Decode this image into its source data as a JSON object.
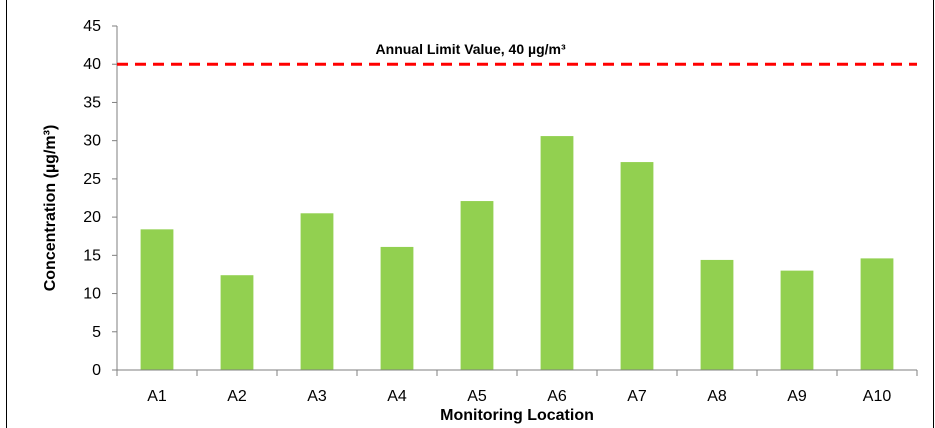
{
  "chart_data": {
    "type": "bar",
    "categories": [
      "A1",
      "A2",
      "A3",
      "A4",
      "A5",
      "A6",
      "A7",
      "A8",
      "A9",
      "A10"
    ],
    "values": [
      18.4,
      12.4,
      20.5,
      16.1,
      22.1,
      30.6,
      27.2,
      14.4,
      13.0,
      14.6
    ],
    "xlabel": "Monitoring Location",
    "ylabel": "Concentration (µg/m³)",
    "ylim": [
      0,
      45
    ],
    "yticks": [
      0,
      5,
      10,
      15,
      20,
      25,
      30,
      35,
      40,
      45
    ],
    "bar_color": "#92d050",
    "grid": false,
    "reference_line": {
      "value": 40,
      "label": "Annual Limit Value, 40 µg/m³",
      "color": "#ff0000",
      "style": "dashed"
    }
  }
}
